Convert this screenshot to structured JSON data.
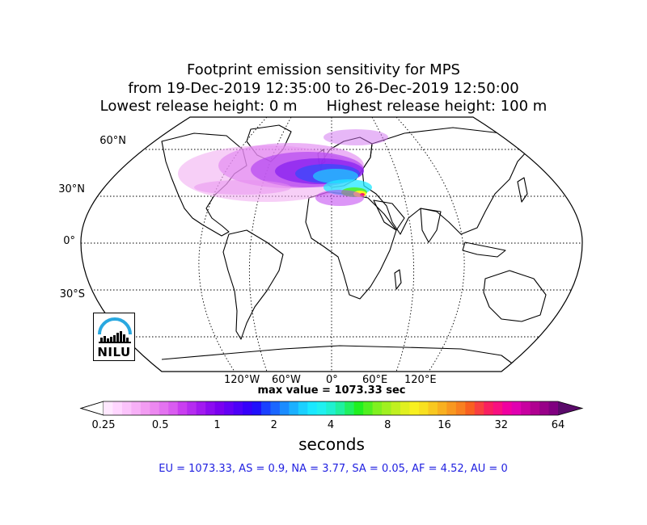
{
  "title": {
    "line1": "Footprint emission sensitivity for MPS",
    "line2": "from 19-Dec-2019 12:35:00 to 26-Dec-2019 12:50:00",
    "line3_left": "Lowest release height: 0 m",
    "line3_right": "Highest release height: 100 m"
  },
  "map": {
    "projection": "robinson",
    "lat_labels": [
      "60°N",
      "30°N",
      "0°",
      "30°S"
    ],
    "lon_labels": [
      "120°W",
      "60°W",
      "0°",
      "60°E",
      "120°E"
    ],
    "gridlines": "dotted"
  },
  "max_value_label": "max value = 1073.33 sec",
  "colorbar": {
    "ticks": [
      "0.25",
      "0.5",
      "1",
      "2",
      "4",
      "8",
      "16",
      "32",
      "64"
    ],
    "unit_label": "seconds",
    "extend": "both",
    "colors": [
      "#ffe8ff",
      "#ffd6ff",
      "#fbc3fb",
      "#f7b0f7",
      "#f29cf2",
      "#ec88f0",
      "#e373f0",
      "#d95cf0",
      "#c93ef0",
      "#b52cf0",
      "#a21af0",
      "#8c0cf0",
      "#7a00f0",
      "#6400f5",
      "#4d00f8",
      "#3600fa",
      "#2010fb",
      "#1a40ff",
      "#1a66ff",
      "#1a8cff",
      "#1ab0ff",
      "#1ad0ff",
      "#1ae8ff",
      "#20f0f0",
      "#20f0d0",
      "#20f0a0",
      "#20f060",
      "#20f020",
      "#50f020",
      "#80f020",
      "#a0f020",
      "#c0f020",
      "#e0f020",
      "#f8f020",
      "#f8e020",
      "#f8c820",
      "#f8b020",
      "#f89820",
      "#f88020",
      "#f86020",
      "#f84040",
      "#f82060",
      "#f81080",
      "#f000a0",
      "#e000b0",
      "#c800a0",
      "#b00090",
      "#980088",
      "#800080"
    ],
    "under_color": "#ffffff",
    "over_color": "#5a0a6a"
  },
  "region_summary": "EU = 1073.33,  AS = 0.9,  NA = 3.77,  SA = 0.05,  AF = 4.52,  AU = 0",
  "logo": {
    "text": "NILU",
    "accent_color": "#29a8e0"
  }
}
